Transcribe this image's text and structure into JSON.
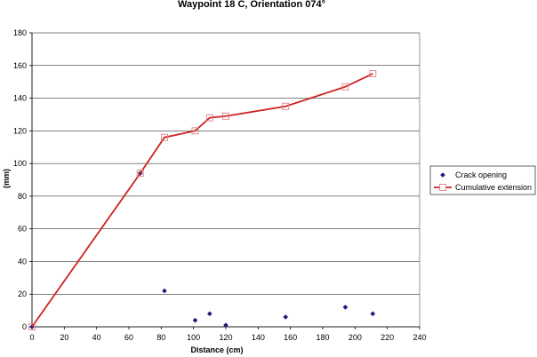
{
  "chart_data": {
    "type": "line",
    "title": "Waypoint 18 C, Orientation 074°",
    "xlabel": "Distance (cm)",
    "ylabel": "(mm)",
    "xlim": [
      0,
      240
    ],
    "ylim": [
      0,
      180
    ],
    "xticks": [
      0,
      20,
      40,
      60,
      80,
      100,
      120,
      140,
      160,
      180,
      200,
      220,
      240
    ],
    "yticks": [
      0,
      20,
      40,
      60,
      80,
      100,
      120,
      140,
      160,
      180
    ],
    "grid": "horizontal",
    "legend_position": "right",
    "series": [
      {
        "name": "Crack opening",
        "style": "scatter",
        "marker": "diamond",
        "color": "#1a1a7a",
        "points": [
          {
            "x": 0,
            "y": 0
          },
          {
            "x": 67,
            "y": 94
          },
          {
            "x": 82,
            "y": 22
          },
          {
            "x": 101,
            "y": 4
          },
          {
            "x": 110,
            "y": 8
          },
          {
            "x": 120,
            "y": 1
          },
          {
            "x": 157,
            "y": 6
          },
          {
            "x": 194,
            "y": 12
          },
          {
            "x": 211,
            "y": 8
          }
        ]
      },
      {
        "name": "Cumulative extension",
        "style": "line",
        "marker": "square",
        "color": "#cc2222",
        "points": [
          {
            "x": 0,
            "y": 0
          },
          {
            "x": 67,
            "y": 94
          },
          {
            "x": 82,
            "y": 116
          },
          {
            "x": 101,
            "y": 120
          },
          {
            "x": 110,
            "y": 128
          },
          {
            "x": 120,
            "y": 129
          },
          {
            "x": 157,
            "y": 135
          },
          {
            "x": 194,
            "y": 147
          },
          {
            "x": 211,
            "y": 155
          }
        ]
      }
    ]
  }
}
